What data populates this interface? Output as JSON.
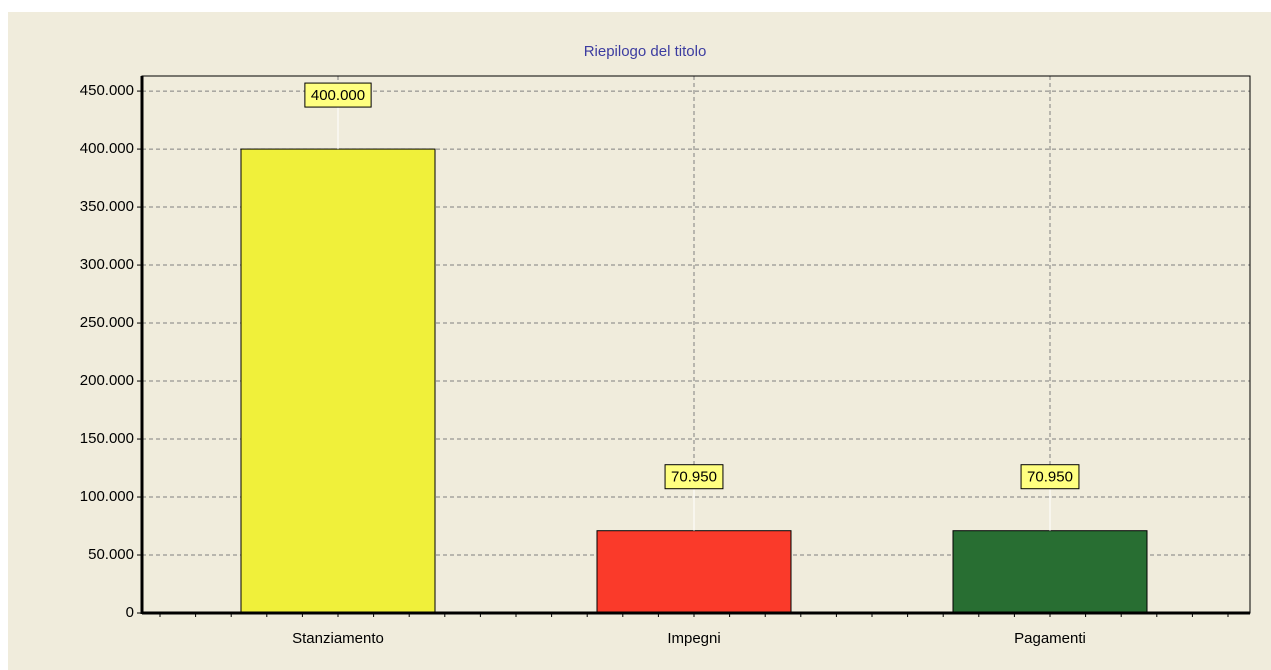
{
  "chart_data": {
    "type": "bar",
    "title": "Riepilogo del titolo",
    "categories": [
      "Stanziamento",
      "Impegni",
      "Pagamenti"
    ],
    "values": [
      400000,
      70950,
      70950
    ],
    "value_labels": [
      "400.000",
      "70.950",
      "70.950"
    ],
    "colors": [
      "#f0f03a",
      "#fa3a2a",
      "#286e32"
    ],
    "ylim": [
      0,
      463000
    ],
    "yticks": [
      0,
      {
        "value": 50000,
        "label": "50.000"
      },
      {
        "value": 100000,
        "label": "100.000"
      },
      {
        "value": 150000,
        "label": "150.000"
      },
      {
        "value": 200000,
        "label": "200.000"
      },
      {
        "value": 250000,
        "label": "250.000"
      },
      {
        "value": 300000,
        "label": "300.000"
      },
      {
        "value": 350000,
        "label": "350.000"
      },
      {
        "value": 400000,
        "label": "400.000"
      },
      {
        "value": 450000,
        "label": "450.000"
      }
    ],
    "grid": true
  }
}
